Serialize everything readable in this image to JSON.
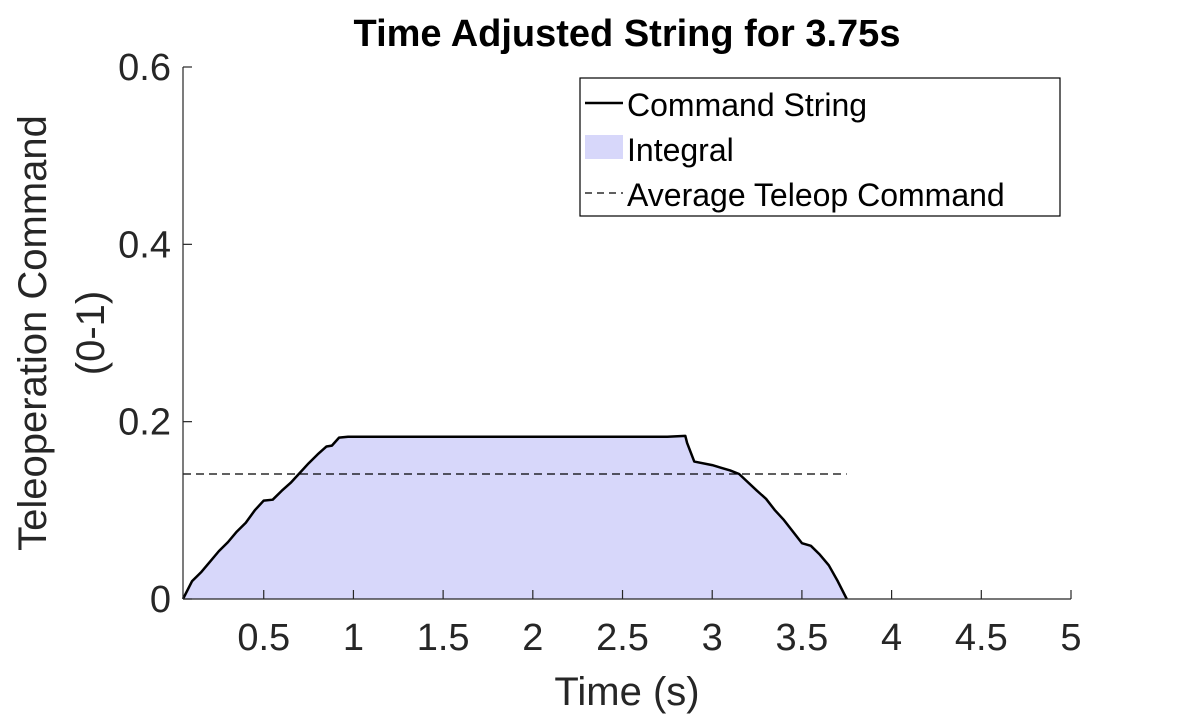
{
  "chart_data": {
    "type": "area",
    "title": "Time Adjusted String for 3.75s",
    "xlabel": "Time (s)",
    "ylabel": [
      "Teleoperation Command",
      "(0-1)"
    ],
    "xlim": [
      0.05,
      5
    ],
    "ylim": [
      0,
      0.6
    ],
    "xticks": [
      0.5,
      1,
      1.5,
      2,
      2.5,
      3,
      3.5,
      4,
      4.5,
      5
    ],
    "xtick_labels": [
      "0.5",
      "1",
      "1.5",
      "2",
      "2.5",
      "3",
      "3.5",
      "4",
      "4.5",
      "5"
    ],
    "yticks": [
      0,
      0.2,
      0.4,
      0.6
    ],
    "ytick_labels": [
      "0",
      "0.2",
      "0.4",
      "0.6"
    ],
    "grid": false,
    "legend_position": "top-right",
    "series": [
      {
        "name": "Command String",
        "kind": "line",
        "color": "#000000",
        "x": [
          0.05,
          0.1,
          0.15,
          0.2,
          0.25,
          0.3,
          0.35,
          0.4,
          0.45,
          0.5,
          0.55,
          0.6,
          0.65,
          0.7,
          0.75,
          0.8,
          0.85,
          0.88,
          0.92,
          0.97,
          1.2,
          1.6,
          2.0,
          2.4,
          2.75,
          2.85,
          2.86,
          2.9,
          3.0,
          3.05,
          3.1,
          3.15,
          3.25,
          3.3,
          3.35,
          3.4,
          3.45,
          3.5,
          3.55,
          3.6,
          3.65,
          3.7,
          3.75
        ],
        "y": [
          0.0,
          0.02,
          0.03,
          0.042,
          0.054,
          0.064,
          0.076,
          0.086,
          0.1,
          0.111,
          0.112,
          0.122,
          0.131,
          0.142,
          0.153,
          0.163,
          0.172,
          0.173,
          0.182,
          0.183,
          0.183,
          0.183,
          0.183,
          0.183,
          0.183,
          0.184,
          0.176,
          0.155,
          0.151,
          0.148,
          0.145,
          0.141,
          0.122,
          0.113,
          0.1,
          0.089,
          0.076,
          0.063,
          0.06,
          0.05,
          0.038,
          0.02,
          0.0
        ]
      },
      {
        "name": "Integral",
        "kind": "area",
        "color": "#d7d7fa",
        "source": "Command String"
      },
      {
        "name": "Average Teleop Command",
        "kind": "hline",
        "color": "#000000",
        "style": "dashed",
        "y": 0.141,
        "x": [
          0.05,
          3.75
        ]
      }
    ]
  }
}
